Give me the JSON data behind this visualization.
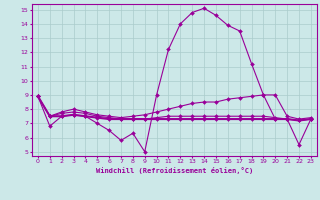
{
  "xlabel": "Windchill (Refroidissement éolien,°C)",
  "xlim": [
    -0.5,
    23.5
  ],
  "ylim": [
    4.7,
    15.4
  ],
  "yticks": [
    5,
    6,
    7,
    8,
    9,
    10,
    11,
    12,
    13,
    14,
    15
  ],
  "xticks": [
    0,
    1,
    2,
    3,
    4,
    5,
    6,
    7,
    8,
    9,
    10,
    11,
    12,
    13,
    14,
    15,
    16,
    17,
    18,
    19,
    20,
    21,
    22,
    23
  ],
  "background_color": "#cce8e8",
  "grid_color": "#aacccc",
  "line_color": "#990099",
  "hours": [
    0,
    1,
    2,
    3,
    4,
    5,
    6,
    7,
    8,
    9,
    10,
    11,
    12,
    13,
    14,
    15,
    16,
    17,
    18,
    19,
    20,
    21,
    22,
    23
  ],
  "line1": [
    8.9,
    6.8,
    7.5,
    7.6,
    7.5,
    7.0,
    6.5,
    5.8,
    6.3,
    5.0,
    9.0,
    12.2,
    14.0,
    14.8,
    15.1,
    14.6,
    13.9,
    13.5,
    11.2,
    9.0,
    7.3,
    7.3,
    5.5,
    7.3
  ],
  "line2": [
    8.9,
    7.5,
    7.8,
    8.0,
    7.8,
    7.6,
    7.5,
    7.4,
    7.5,
    7.6,
    7.8,
    8.0,
    8.2,
    8.4,
    8.5,
    8.5,
    8.7,
    8.8,
    8.9,
    9.0,
    9.0,
    7.5,
    7.3,
    7.4
  ],
  "line3": [
    8.9,
    7.5,
    7.5,
    7.6,
    7.5,
    7.4,
    7.3,
    7.3,
    7.3,
    7.3,
    7.3,
    7.3,
    7.3,
    7.3,
    7.3,
    7.3,
    7.3,
    7.3,
    7.3,
    7.3,
    7.3,
    7.3,
    7.2,
    7.3
  ],
  "line4": [
    8.9,
    7.5,
    7.7,
    7.8,
    7.7,
    7.5,
    7.4,
    7.3,
    7.3,
    7.3,
    7.4,
    7.5,
    7.5,
    7.5,
    7.5,
    7.5,
    7.5,
    7.5,
    7.5,
    7.5,
    7.4,
    7.3,
    7.2,
    7.3
  ]
}
